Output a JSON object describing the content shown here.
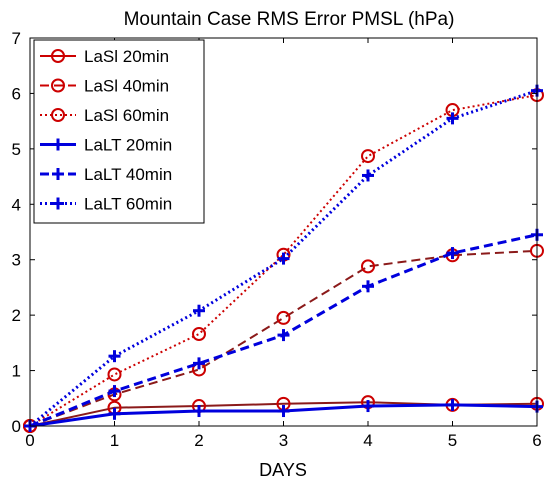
{
  "chart_data": {
    "type": "line",
    "title": "Mountain Case RMS Error PMSL (hPa)",
    "xlabel": "DAYS",
    "ylabel": "",
    "xlim": [
      0,
      6
    ],
    "ylim": [
      0,
      7
    ],
    "xticks": [
      0,
      1,
      2,
      3,
      4,
      5,
      6
    ],
    "yticks": [
      0,
      1,
      2,
      3,
      4,
      5,
      6,
      7
    ],
    "grid": false,
    "legend_position": "top-left",
    "x": [
      0,
      1,
      2,
      3,
      4,
      5,
      6
    ],
    "series": [
      {
        "name": "LaSl 20min",
        "values": [
          0.0,
          0.33,
          0.36,
          0.4,
          0.43,
          0.38,
          0.4
        ],
        "color": "#cc0000",
        "line_color": "#8b1a1a",
        "dash": "solid",
        "marker": "circle"
      },
      {
        "name": "LaSl 40min",
        "values": [
          0.0,
          0.57,
          1.02,
          1.95,
          2.88,
          3.08,
          3.16
        ],
        "color": "#cc0000",
        "line_color": "#8b1a1a",
        "dash": "dashed",
        "marker": "circle"
      },
      {
        "name": "LaSl 60min",
        "values": [
          0.0,
          0.93,
          1.66,
          3.09,
          4.87,
          5.7,
          5.97
        ],
        "color": "#cc0000",
        "line_color": "#cc0000",
        "dash": "dotted",
        "marker": "circle"
      },
      {
        "name": "LaLT 20min",
        "values": [
          0.0,
          0.22,
          0.27,
          0.27,
          0.36,
          0.38,
          0.35
        ],
        "color": "#0000dd",
        "line_color": "#0000dd",
        "dash": "solid",
        "marker": "plus"
      },
      {
        "name": "LaLT 40min",
        "values": [
          0.0,
          0.63,
          1.13,
          1.64,
          2.52,
          3.12,
          3.45
        ],
        "color": "#0000dd",
        "line_color": "#0000dd",
        "dash": "dashed",
        "marker": "plus"
      },
      {
        "name": "LaLT 60min",
        "values": [
          0.0,
          1.26,
          2.08,
          3.02,
          4.52,
          5.55,
          6.05
        ],
        "color": "#0000dd",
        "line_color": "#0000dd",
        "dash": "dotted",
        "marker": "plus"
      }
    ]
  }
}
